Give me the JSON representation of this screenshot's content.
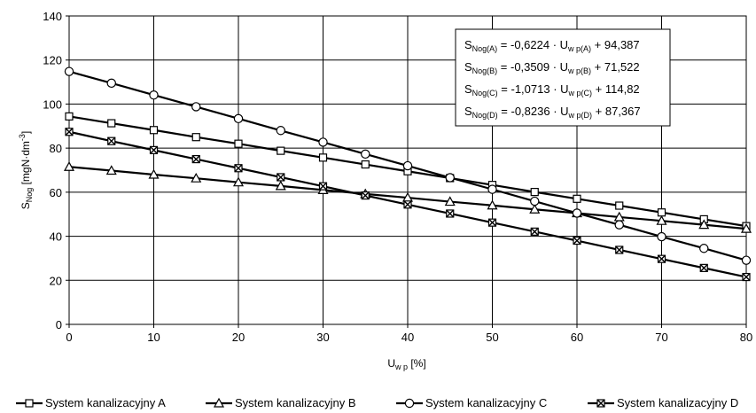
{
  "chart_data": {
    "type": "line",
    "x": [
      0,
      5,
      10,
      15,
      20,
      25,
      30,
      35,
      40,
      45,
      50,
      55,
      60,
      65,
      70,
      75,
      80
    ],
    "xlim": [
      0,
      80
    ],
    "ylim": [
      0,
      140
    ],
    "x_ticks": [
      "0",
      "10",
      "20",
      "30",
      "40",
      "50",
      "60",
      "70",
      "80"
    ],
    "y_ticks": [
      "0",
      "20",
      "40",
      "60",
      "80",
      "100",
      "120",
      "140"
    ],
    "xlabel": {
      "main": "U",
      "sub": "w p",
      "tail": " [%]"
    },
    "ylabel": {
      "main": "S",
      "sub": "Nog",
      "tail": " [mgN·dm",
      "sup": "-3",
      "end": "]"
    },
    "grid": true,
    "legend_position": "bottom",
    "series": [
      {
        "name": "System kalanizacyjny A",
        "marker": "square",
        "values": [
          94.4,
          91.3,
          88.2,
          85.0,
          82.0,
          78.8,
          75.7,
          72.6,
          69.5,
          66.4,
          63.3,
          60.1,
          57.0,
          53.9,
          50.8,
          47.7,
          44.6
        ]
      },
      {
        "name": "System kalanizacyjny B",
        "marker": "triangle",
        "values": [
          71.5,
          69.8,
          68.0,
          66.3,
          64.5,
          62.8,
          61.0,
          59.2,
          57.5,
          55.7,
          54.0,
          52.2,
          50.5,
          48.7,
          47.0,
          45.2,
          43.4
        ]
      },
      {
        "name": "System kalanizacyjny C",
        "marker": "circle",
        "values": [
          114.8,
          109.5,
          104.1,
          98.8,
          93.4,
          88.0,
          82.7,
          77.3,
          72.0,
          66.6,
          61.3,
          55.9,
          50.5,
          45.2,
          39.8,
          34.5,
          29.1
        ]
      },
      {
        "name": "System kalanizacyjny D",
        "marker": "xsquare",
        "values": [
          87.4,
          83.2,
          79.1,
          75.0,
          70.9,
          66.8,
          62.7,
          58.5,
          54.4,
          50.3,
          46.2,
          42.1,
          38.0,
          33.8,
          29.7,
          25.6,
          21.5
        ]
      }
    ],
    "legend_labels": [
      "System kanalizacyjny A",
      "System kanalizacyjny B",
      "System kanalizacyjny C",
      "System kanalizacyjny D"
    ],
    "equations": [
      {
        "lhs": "S",
        "lhs_sub": "Nog(A)",
        "mid": " = -0,6224 · U",
        "rhs_sub": "w p(A)",
        "tail": " + 94,387"
      },
      {
        "lhs": "S",
        "lhs_sub": "Nog(B)",
        "mid": " = -0,3509 · U",
        "rhs_sub": "w p(B)",
        "tail": " + 71,522"
      },
      {
        "lhs": "S",
        "lhs_sub": "Nog(C)",
        "mid": " = -1,0713 · U",
        "rhs_sub": "w p(C)",
        "tail": " + 114,82"
      },
      {
        "lhs": "S",
        "lhs_sub": "Nog(D)",
        "mid": " = -0,8236 · U",
        "rhs_sub": "w p(D)",
        "tail": " + 87,367"
      }
    ]
  }
}
